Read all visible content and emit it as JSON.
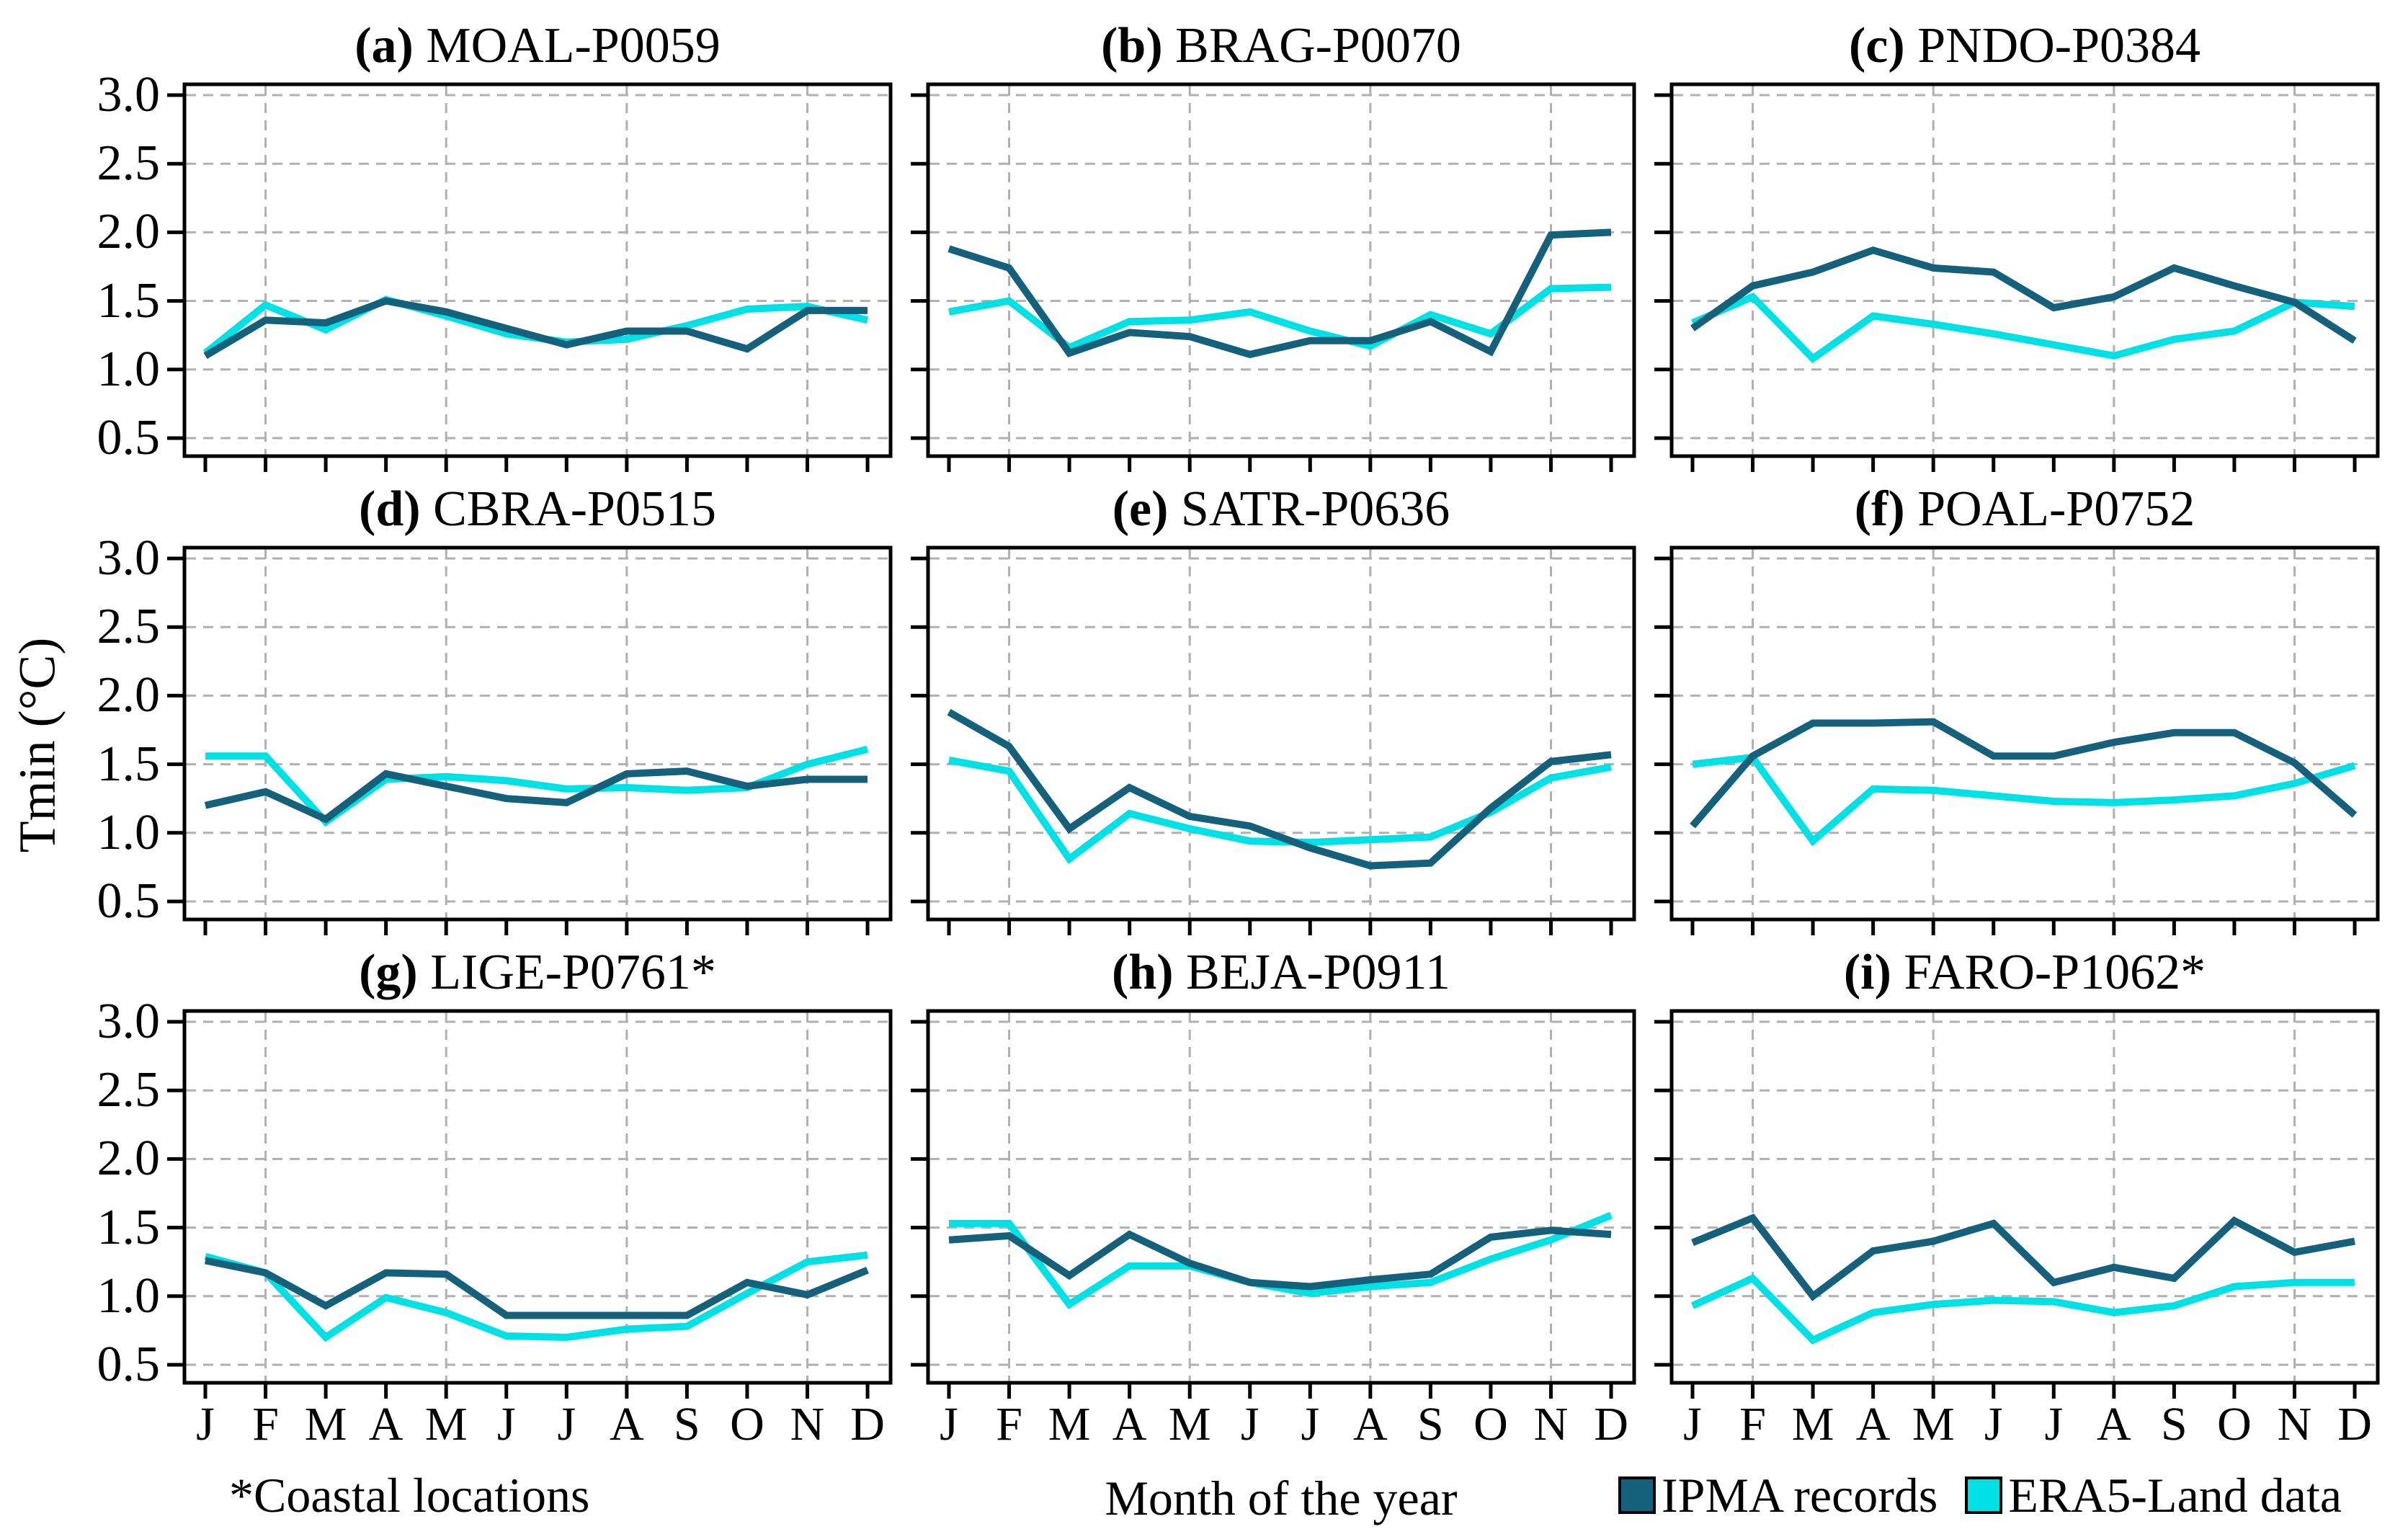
{
  "figure": {
    "ylabel": "Tmin (°C)",
    "xlabel": "Month of the year",
    "footnote": "*Coastal locations",
    "months": [
      "J",
      "F",
      "M",
      "A",
      "M",
      "J",
      "J",
      "A",
      "S",
      "O",
      "N",
      "D"
    ],
    "yticks": [
      "3.0",
      "2.5",
      "2.0",
      "1.5",
      "1.0",
      "0.5"
    ],
    "legend": [
      {
        "label": "IPMA records",
        "color": "#15607a"
      },
      {
        "label": "ERA5-Land data",
        "color": "#00e1e6"
      }
    ],
    "colors": {
      "ipma": "#15607a",
      "era5": "#00e1e6",
      "grid": "#b0b0b0",
      "frame": "#000000"
    }
  },
  "chart_data": [
    {
      "type": "line",
      "id": "a",
      "letter": "(a)",
      "station": "MOAL-P0059",
      "title": "(a) MOAL-P0059",
      "categories": [
        "J",
        "F",
        "M",
        "A",
        "M",
        "J",
        "J",
        "A",
        "S",
        "O",
        "N",
        "D"
      ],
      "ylim": [
        0.5,
        3.0
      ],
      "grid": "dashed",
      "legend_position": "figure-bottom-right",
      "series": [
        {
          "name": "IPMA records",
          "values": [
            1.1,
            1.36,
            1.34,
            1.5,
            1.42,
            1.3,
            1.18,
            1.28,
            1.28,
            1.15,
            1.43,
            1.43
          ]
        },
        {
          "name": "ERA5-Land data",
          "values": [
            1.12,
            1.47,
            1.29,
            1.51,
            1.39,
            1.26,
            1.2,
            1.22,
            1.32,
            1.44,
            1.46,
            1.36
          ]
        }
      ]
    },
    {
      "type": "line",
      "id": "b",
      "letter": "(b)",
      "station": "BRAG-P0070",
      "title": "(b) BRAG-P0070",
      "categories": [
        "J",
        "F",
        "M",
        "A",
        "M",
        "J",
        "J",
        "A",
        "S",
        "O",
        "N",
        "D"
      ],
      "ylim": [
        0.5,
        3.0
      ],
      "grid": "dashed",
      "series": [
        {
          "name": "IPMA records",
          "values": [
            1.88,
            1.74,
            1.12,
            1.27,
            1.24,
            1.11,
            1.21,
            1.21,
            1.35,
            1.13,
            1.98,
            2.0
          ]
        },
        {
          "name": "ERA5-Land data",
          "values": [
            1.42,
            1.5,
            1.16,
            1.35,
            1.36,
            1.42,
            1.28,
            1.17,
            1.4,
            1.26,
            1.59,
            1.6
          ]
        }
      ]
    },
    {
      "type": "line",
      "id": "c",
      "letter": "(c)",
      "station": "PNDO-P0384",
      "title": "(c) PNDO-P0384",
      "categories": [
        "J",
        "F",
        "M",
        "A",
        "M",
        "J",
        "J",
        "A",
        "S",
        "O",
        "N",
        "D"
      ],
      "ylim": [
        0.5,
        3.0
      ],
      "grid": "dashed",
      "series": [
        {
          "name": "IPMA records",
          "values": [
            1.3,
            1.61,
            1.71,
            1.87,
            1.74,
            1.71,
            1.45,
            1.53,
            1.74,
            1.61,
            1.49,
            1.21
          ]
        },
        {
          "name": "ERA5-Land data",
          "values": [
            1.34,
            1.53,
            1.08,
            1.39,
            1.33,
            1.26,
            1.18,
            1.1,
            1.22,
            1.28,
            1.49,
            1.46
          ]
        }
      ]
    },
    {
      "type": "line",
      "id": "d",
      "letter": "(d)",
      "station": "CBRA-P0515",
      "title": "(d) CBRA-P0515",
      "categories": [
        "J",
        "F",
        "M",
        "A",
        "M",
        "J",
        "J",
        "A",
        "S",
        "O",
        "N",
        "D"
      ],
      "ylim": [
        0.5,
        3.0
      ],
      "grid": "dashed",
      "series": [
        {
          "name": "IPMA records",
          "values": [
            1.2,
            1.3,
            1.1,
            1.43,
            1.34,
            1.25,
            1.22,
            1.43,
            1.45,
            1.34,
            1.39,
            1.39
          ]
        },
        {
          "name": "ERA5-Land data",
          "values": [
            1.56,
            1.56,
            1.08,
            1.39,
            1.41,
            1.38,
            1.32,
            1.33,
            1.31,
            1.33,
            1.5,
            1.61
          ]
        }
      ]
    },
    {
      "type": "line",
      "id": "e",
      "letter": "(e)",
      "station": "SATR-P0636",
      "title": "(e) SATR-P0636",
      "categories": [
        "J",
        "F",
        "M",
        "A",
        "M",
        "J",
        "J",
        "A",
        "S",
        "O",
        "N",
        "D"
      ],
      "ylim": [
        0.5,
        3.0
      ],
      "grid": "dashed",
      "series": [
        {
          "name": "IPMA records",
          "values": [
            1.88,
            1.63,
            1.03,
            1.33,
            1.12,
            1.05,
            0.89,
            0.76,
            0.78,
            1.18,
            1.52,
            1.57
          ]
        },
        {
          "name": "ERA5-Land data",
          "values": [
            1.53,
            1.45,
            0.81,
            1.14,
            1.03,
            0.94,
            0.93,
            0.95,
            0.97,
            1.15,
            1.4,
            1.48
          ]
        }
      ]
    },
    {
      "type": "line",
      "id": "f",
      "letter": "(f)",
      "station": "POAL-P0752",
      "title": "(f) POAL-P0752",
      "categories": [
        "J",
        "F",
        "M",
        "A",
        "M",
        "J",
        "J",
        "A",
        "S",
        "O",
        "N",
        "D"
      ],
      "ylim": [
        0.5,
        3.0
      ],
      "grid": "dashed",
      "series": [
        {
          "name": "IPMA records",
          "values": [
            1.05,
            1.56,
            1.8,
            1.8,
            1.81,
            1.56,
            1.56,
            1.66,
            1.73,
            1.73,
            1.51,
            1.13
          ]
        },
        {
          "name": "ERA5-Land data",
          "values": [
            1.5,
            1.55,
            0.94,
            1.32,
            1.31,
            1.27,
            1.23,
            1.22,
            1.24,
            1.27,
            1.36,
            1.49
          ]
        }
      ]
    },
    {
      "type": "line",
      "id": "g",
      "letter": "(g)",
      "station": "LIGE-P0761*",
      "title": "(g) LIGE-P0761*",
      "coastal": true,
      "categories": [
        "J",
        "F",
        "M",
        "A",
        "M",
        "J",
        "J",
        "A",
        "S",
        "O",
        "N",
        "D"
      ],
      "ylim": [
        0.5,
        3.0
      ],
      "grid": "dashed",
      "series": [
        {
          "name": "IPMA records",
          "values": [
            1.26,
            1.17,
            0.93,
            1.17,
            1.16,
            0.86,
            0.86,
            0.86,
            0.86,
            1.1,
            1.01,
            1.19
          ]
        },
        {
          "name": "ERA5-Land data",
          "values": [
            1.29,
            1.17,
            0.7,
            0.99,
            0.88,
            0.71,
            0.7,
            0.76,
            0.78,
            1.02,
            1.25,
            1.3
          ]
        }
      ]
    },
    {
      "type": "line",
      "id": "h",
      "letter": "(h)",
      "station": "BEJA-P0911",
      "title": "(h) BEJA-P0911",
      "categories": [
        "J",
        "F",
        "M",
        "A",
        "M",
        "J",
        "J",
        "A",
        "S",
        "O",
        "N",
        "D"
      ],
      "ylim": [
        0.5,
        3.0
      ],
      "grid": "dashed",
      "series": [
        {
          "name": "IPMA records",
          "values": [
            1.41,
            1.44,
            1.15,
            1.45,
            1.24,
            1.1,
            1.07,
            1.12,
            1.16,
            1.43,
            1.48,
            1.45
          ]
        },
        {
          "name": "ERA5-Land data",
          "values": [
            1.53,
            1.53,
            0.94,
            1.22,
            1.22,
            1.1,
            1.02,
            1.07,
            1.1,
            1.27,
            1.41,
            1.59
          ]
        }
      ]
    },
    {
      "type": "line",
      "id": "i",
      "letter": "(i)",
      "station": "FARO-P1062*",
      "title": "(i) FARO-P1062*",
      "coastal": true,
      "categories": [
        "J",
        "F",
        "M",
        "A",
        "M",
        "J",
        "J",
        "A",
        "S",
        "O",
        "N",
        "D"
      ],
      "ylim": [
        0.5,
        3.0
      ],
      "grid": "dashed",
      "series": [
        {
          "name": "IPMA records",
          "values": [
            1.39,
            1.57,
            1.0,
            1.33,
            1.4,
            1.53,
            1.1,
            1.21,
            1.13,
            1.55,
            1.32,
            1.4
          ]
        },
        {
          "name": "ERA5-Land data",
          "values": [
            0.93,
            1.13,
            0.68,
            0.88,
            0.94,
            0.97,
            0.96,
            0.88,
            0.93,
            1.07,
            1.1,
            1.1
          ]
        }
      ]
    }
  ]
}
